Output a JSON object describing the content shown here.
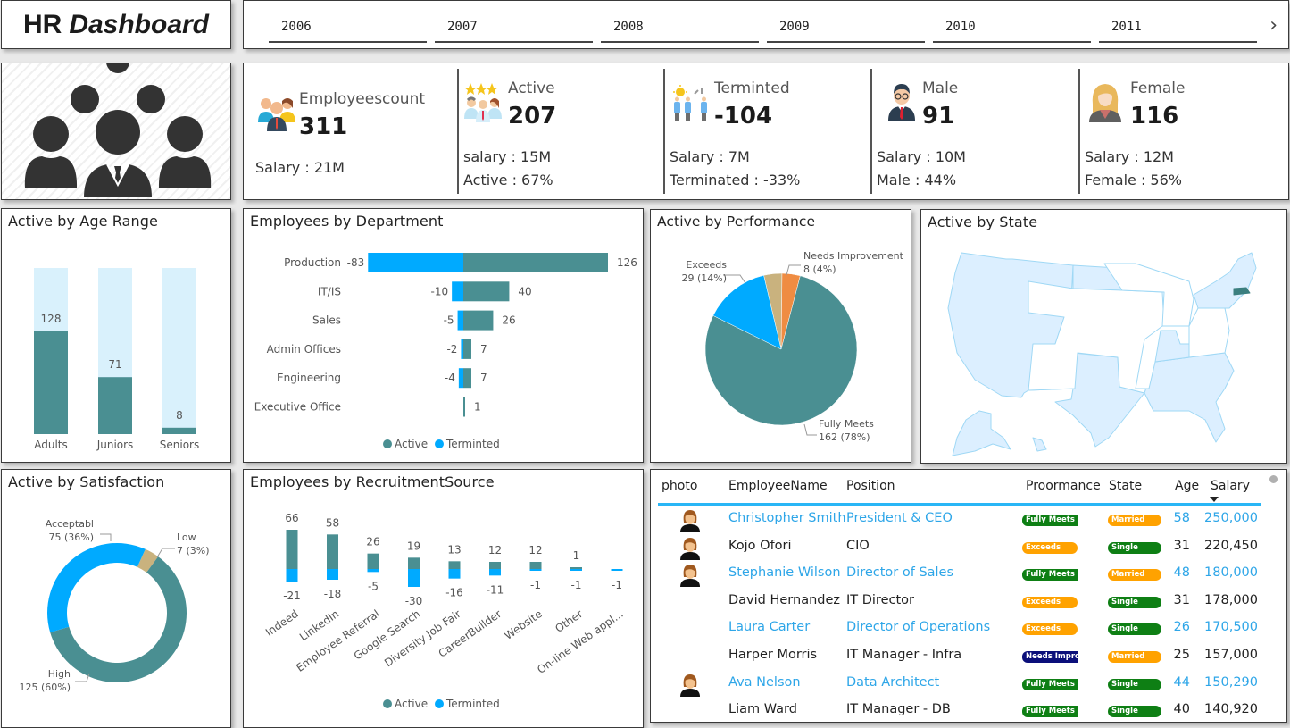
{
  "header": {
    "title_part1": "HR",
    "title_part2": "Dashboard"
  },
  "year_slicer": {
    "years": [
      "2006",
      "2007",
      "2008",
      "2009",
      "2010",
      "2011"
    ],
    "next_icon": "chevron-right-icon"
  },
  "logo": {
    "icon": "people-group-icon"
  },
  "kpis": [
    {
      "id": "employees",
      "label": "Employeescount",
      "value": "311",
      "lines": [
        "Salary : 21M"
      ],
      "icon": "employees-group-icon"
    },
    {
      "id": "active",
      "label": "Active",
      "value": "207",
      "lines": [
        "salary : 15M",
        "Active : 67%"
      ],
      "icon": "active-stars-icon"
    },
    {
      "id": "terminated",
      "label": "Terminted",
      "value": "-104",
      "lines": [
        "Salary : 7M",
        "Terminated : -33%"
      ],
      "icon": "terminated-people-icon"
    },
    {
      "id": "male",
      "label": "Male",
      "value": "91",
      "lines": [
        "Salary : 10M",
        "Male : 44%"
      ],
      "icon": "male-avatar-icon"
    },
    {
      "id": "female",
      "label": "Female",
      "value": "116",
      "lines": [
        "Salary : 12M",
        "Female : 56%"
      ],
      "icon": "female-avatar-icon"
    }
  ],
  "colors": {
    "active": "#4a8f92",
    "terminated": "#00aaff",
    "light": "#d9f1fc",
    "tan": "#c9b27e",
    "orange": "#ef8c42",
    "green_badge": "#0e7f14",
    "orange_badge": "#ffa200",
    "navy_badge": "#0b0f7a",
    "link": "#2ea6e8"
  },
  "chart_data": [
    {
      "id": "age",
      "type": "bar",
      "title": "Active by Age Range",
      "categories": [
        "Adults",
        "Juniors",
        "Seniors"
      ],
      "values": [
        128,
        71,
        8
      ],
      "max": 207
    },
    {
      "id": "dept",
      "type": "bar",
      "title": "Employees by Department",
      "categories": [
        "Production",
        "IT/IS",
        "Sales",
        "Admin Offices",
        "Engineering",
        "Executive Office"
      ],
      "series": [
        {
          "name": "Active",
          "values": [
            126,
            40,
            26,
            7,
            7,
            1
          ]
        },
        {
          "name": "Terminted",
          "values": [
            -83,
            -10,
            -5,
            -2,
            -4,
            0
          ]
        }
      ],
      "legend": [
        "Active",
        "Terminted"
      ],
      "legend_position": "bottom"
    },
    {
      "id": "perf",
      "type": "pie",
      "title": "Active by Performance",
      "slices": [
        {
          "label": "Fully Meets",
          "value": 162,
          "pct": "78%"
        },
        {
          "label": "Exceeds",
          "value": 29,
          "pct": "14%"
        },
        {
          "label": "",
          "value": 8,
          "pct": "4%"
        },
        {
          "label": "Needs Improvement",
          "value": 8,
          "pct": "4%"
        }
      ],
      "annotations": [
        "Exceeds",
        "29 (14%)",
        "Needs Improvement",
        "8 (4%)",
        "Fully Meets",
        "162 (78%)"
      ]
    },
    {
      "id": "sat",
      "type": "pie",
      "title": "Active by Satisfaction",
      "donut": true,
      "slices": [
        {
          "label": "Acceptabl",
          "value": 75,
          "pct": "36%"
        },
        {
          "label": "Low",
          "value": 7,
          "pct": "3%"
        },
        {
          "label": "High",
          "value": 125,
          "pct": "60%"
        }
      ],
      "annotations": [
        "Acceptabl",
        "75 (36%)",
        "Low",
        "7 (3%)",
        "High",
        "125 (60%)"
      ]
    },
    {
      "id": "rec",
      "type": "bar",
      "title": "Employees by RecruitmentSource",
      "categories": [
        "Indeed",
        "LinkedIn",
        "Employee Referral",
        "Google Search",
        "Diversity Job Fair",
        "CareerBuilder",
        "Website",
        "Other",
        "On-line Web appl..."
      ],
      "series": [
        {
          "name": "Active",
          "values": [
            66,
            58,
            26,
            19,
            13,
            12,
            12,
            1,
            0
          ]
        },
        {
          "name": "Terminted",
          "values": [
            -21,
            -18,
            -5,
            -30,
            -16,
            -11,
            -1,
            -1,
            -1
          ]
        }
      ],
      "legend": [
        "Active",
        "Terminted"
      ],
      "legend_position": "bottom"
    }
  ],
  "state_map": {
    "title": "Active by State",
    "highlighted_state": "Massachusetts"
  },
  "table": {
    "columns": [
      "photo",
      "EmployeeName",
      "Position",
      "Proormance",
      "State",
      "Age",
      "Salary"
    ],
    "sort_column": "Salary",
    "rows": [
      {
        "photo": true,
        "name": "Christopher Smith",
        "position": "President & CEO",
        "perf": "Fully Meets",
        "perf_color": "#0e7f14",
        "state": "Married",
        "state_color": "#ffa200",
        "age": "58",
        "salary": "250,000",
        "hl": true
      },
      {
        "photo": true,
        "name": "Kojo Ofori",
        "position": "CIO",
        "perf": "Exceeds",
        "perf_color": "#ffa200",
        "state": "Single",
        "state_color": "#0e7f14",
        "age": "31",
        "salary": "220,450",
        "hl": false
      },
      {
        "photo": true,
        "name": "Stephanie Wilson",
        "position": "Director of Sales",
        "perf": "Fully Meets",
        "perf_color": "#0e7f14",
        "state": "Married",
        "state_color": "#ffa200",
        "age": "48",
        "salary": "180,000",
        "hl": true
      },
      {
        "photo": false,
        "name": "David Hernandez",
        "position": "IT Director",
        "perf": "Exceeds",
        "perf_color": "#ffa200",
        "state": "Single",
        "state_color": "#0e7f14",
        "age": "31",
        "salary": "178,000",
        "hl": false
      },
      {
        "photo": false,
        "name": "Laura Carter",
        "position": "Director of Operations",
        "perf": "Exceeds",
        "perf_color": "#ffa200",
        "state": "Single",
        "state_color": "#0e7f14",
        "age": "26",
        "salary": "170,500",
        "hl": true
      },
      {
        "photo": false,
        "name": "Harper Morris",
        "position": "IT Manager - Infra",
        "perf": "Needs Impro",
        "perf_color": "#0b0f7a",
        "state": "Married",
        "state_color": "#ffa200",
        "age": "25",
        "salary": "157,000",
        "hl": false
      },
      {
        "photo": true,
        "name": "Ava Nelson",
        "position": "Data Architect",
        "perf": "Fully Meets",
        "perf_color": "#0e7f14",
        "state": "Single",
        "state_color": "#0e7f14",
        "age": "44",
        "salary": "150,290",
        "hl": true
      },
      {
        "photo": false,
        "name": "Liam Ward",
        "position": "IT Manager - DB",
        "perf": "Fully Meets",
        "perf_color": "#0e7f14",
        "state": "Single",
        "state_color": "#0e7f14",
        "age": "40",
        "salary": "140,920",
        "hl": false
      }
    ]
  }
}
